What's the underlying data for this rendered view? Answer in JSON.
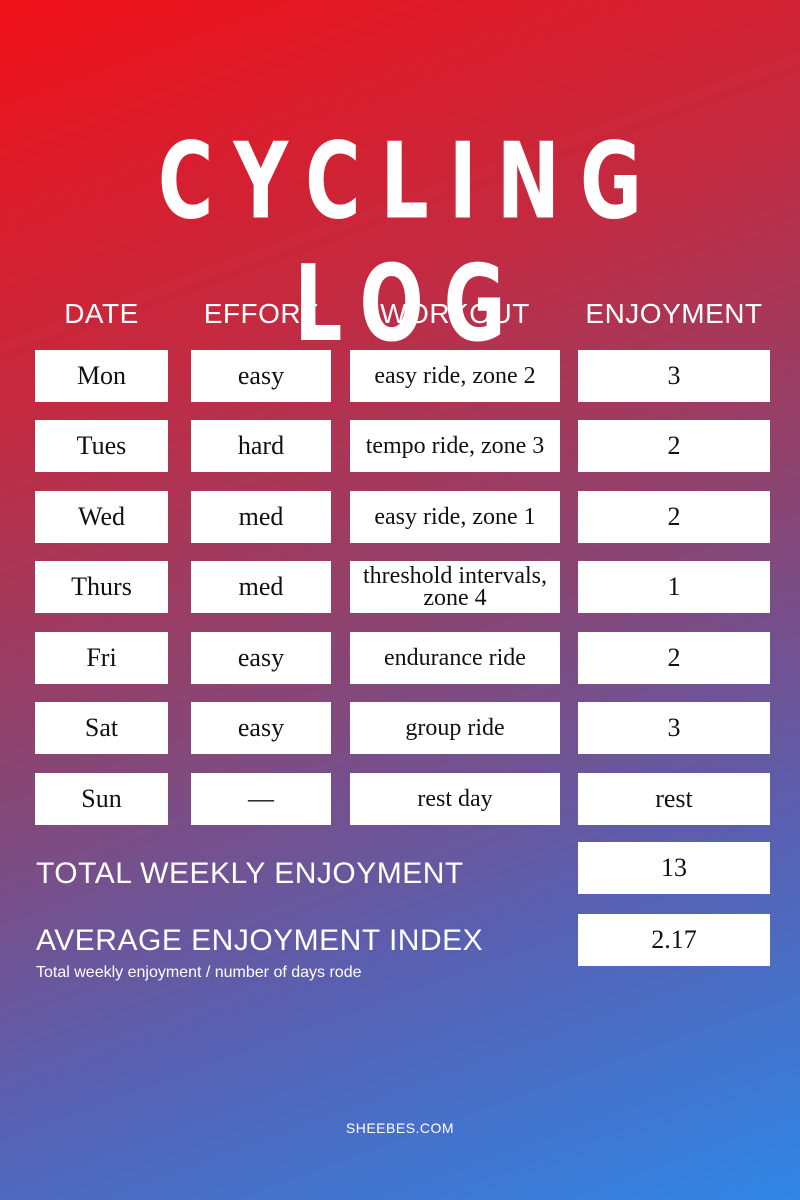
{
  "title": "CYCLING LOG",
  "headers": {
    "date": "DATE",
    "effort": "EFFORT",
    "workout": "WORKOUT",
    "enjoyment": "ENJOYMENT"
  },
  "rows": [
    {
      "date": "Mon",
      "effort": "easy",
      "workout": "easy ride, zone 2",
      "enjoyment": "3"
    },
    {
      "date": "Tues",
      "effort": "hard",
      "workout": "tempo ride, zone 3",
      "enjoyment": "2"
    },
    {
      "date": "Wed",
      "effort": "med",
      "workout": "easy ride, zone 1",
      "enjoyment": "2"
    },
    {
      "date": "Thurs",
      "effort": "med",
      "workout": "threshold intervals, zone 4",
      "enjoyment": "1"
    },
    {
      "date": "Fri",
      "effort": "easy",
      "workout": "endurance ride",
      "enjoyment": "2"
    },
    {
      "date": "Sat",
      "effort": "easy",
      "workout": "group ride",
      "enjoyment": "3"
    },
    {
      "date": "Sun",
      "effort": "—",
      "workout": "rest day",
      "enjoyment": "rest"
    }
  ],
  "summary": {
    "total_label": "TOTAL WEEKLY ENJOYMENT",
    "total_value": "13",
    "average_label": "AVERAGE ENJOYMENT INDEX",
    "average_value": "2.17",
    "average_note": "Total weekly enjoyment / number of days rode"
  },
  "footer": "SHEEBES.COM"
}
